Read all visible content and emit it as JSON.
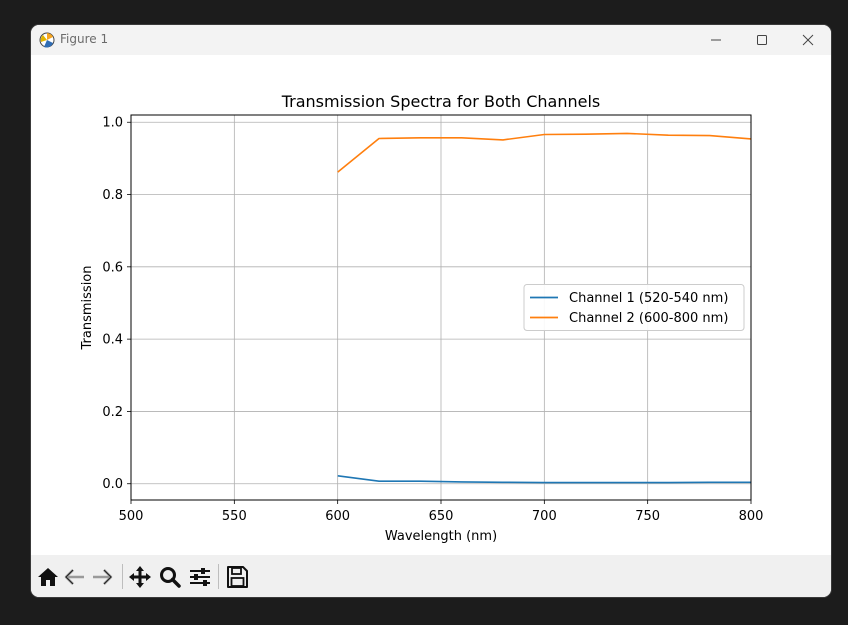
{
  "window": {
    "title": "Figure 1",
    "controls": [
      "minimize-icon",
      "maximize-icon",
      "close-icon"
    ]
  },
  "toolbar": {
    "buttons": [
      "home-icon",
      "back-arrow-icon",
      "forward-arrow-icon",
      "pan-icon",
      "zoom-icon",
      "configure-subplots-icon",
      "save-icon"
    ]
  },
  "chart_data": {
    "type": "line",
    "title": "Transmission Spectra for Both Channels",
    "xlabel": "Wavelength (nm)",
    "ylabel": "Transmission",
    "xlim": [
      500,
      800
    ],
    "ylim": [
      -0.045,
      1.02
    ],
    "xticks": [
      "500",
      "550",
      "600",
      "650",
      "700",
      "750",
      "800"
    ],
    "yticks": [
      "0.0",
      "0.2",
      "0.4",
      "0.6",
      "0.8",
      "1.0"
    ],
    "grid": true,
    "legend_position": "center-right",
    "series": [
      {
        "name": "Channel 1 (520-540 nm)",
        "color": "#1f77b4",
        "x": [
          600,
          620,
          640,
          660,
          680,
          700,
          720,
          740,
          760,
          780,
          800
        ],
        "y": [
          0.022,
          0.007,
          0.007,
          0.005,
          0.004,
          0.003,
          0.003,
          0.003,
          0.003,
          0.004,
          0.004
        ]
      },
      {
        "name": "Channel 2 (600-800 nm)",
        "color": "#ff7f0e",
        "x": [
          600,
          620,
          640,
          660,
          680,
          700,
          720,
          740,
          760,
          780,
          800
        ],
        "y": [
          0.862,
          0.955,
          0.957,
          0.957,
          0.951,
          0.966,
          0.967,
          0.969,
          0.964,
          0.963,
          0.954
        ]
      }
    ]
  }
}
